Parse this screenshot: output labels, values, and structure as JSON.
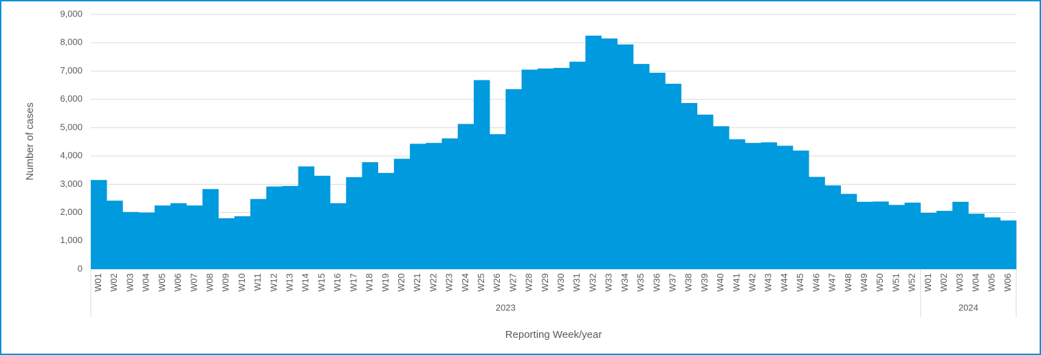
{
  "chart_data": {
    "type": "bar",
    "y_label": "Number of cases",
    "x_label": "Reporting  Week/year",
    "groups": [
      {
        "label": "2023",
        "categories": [
          "W01",
          "W02",
          "W03",
          "W04",
          "W05",
          "W06",
          "W07",
          "W08",
          "W09",
          "W10",
          "W11",
          "W12",
          "W13",
          "W14",
          "W15",
          "W16",
          "W17",
          "W18",
          "W19",
          "W20",
          "W21",
          "W22",
          "W23",
          "W24",
          "W25",
          "W26",
          "W27",
          "W28",
          "W29",
          "W30",
          "W31",
          "W32",
          "W33",
          "W34",
          "W35",
          "W36",
          "W37",
          "W38",
          "W39",
          "W40",
          "W41",
          "W42",
          "W43",
          "W44",
          "W45",
          "W46",
          "W47",
          "W48",
          "W49",
          "W50",
          "W51",
          "W52"
        ]
      },
      {
        "label": "2024",
        "categories": [
          "W01",
          "W02",
          "W03",
          "W04",
          "W05",
          "W06"
        ]
      }
    ],
    "values": [
      3150,
      2420,
      2020,
      2000,
      2250,
      2330,
      2250,
      2830,
      1800,
      1870,
      2480,
      2920,
      2940,
      3630,
      3300,
      2330,
      3250,
      3780,
      3400,
      3900,
      4430,
      4460,
      4620,
      5130,
      6680,
      4770,
      6360,
      7050,
      7090,
      7110,
      7330,
      8250,
      8150,
      7940,
      7250,
      6940,
      6550,
      5870,
      5460,
      5050,
      4590,
      4460,
      4480,
      4360,
      4190,
      3260,
      2960,
      2660,
      2380,
      2390,
      2270,
      2350,
      1990,
      2060,
      2380,
      1960,
      1830,
      1720
    ],
    "color": "#009ade",
    "ylim": [
      0,
      9000
    ],
    "yticks": [
      0,
      {
        "value": 1000,
        "label": "1,000"
      },
      {
        "value": 2000,
        "label": "2,000"
      },
      {
        "value": 3000,
        "label": "3,000"
      },
      {
        "value": 4000,
        "label": "4,000"
      },
      {
        "value": 5000,
        "label": "5,000"
      },
      {
        "value": 6000,
        "label": "6,000"
      },
      {
        "value": 7000,
        "label": "7,000"
      },
      {
        "value": 8000,
        "label": "8,000"
      },
      {
        "value": 9000,
        "label": "9,000"
      }
    ],
    "grid": true
  }
}
